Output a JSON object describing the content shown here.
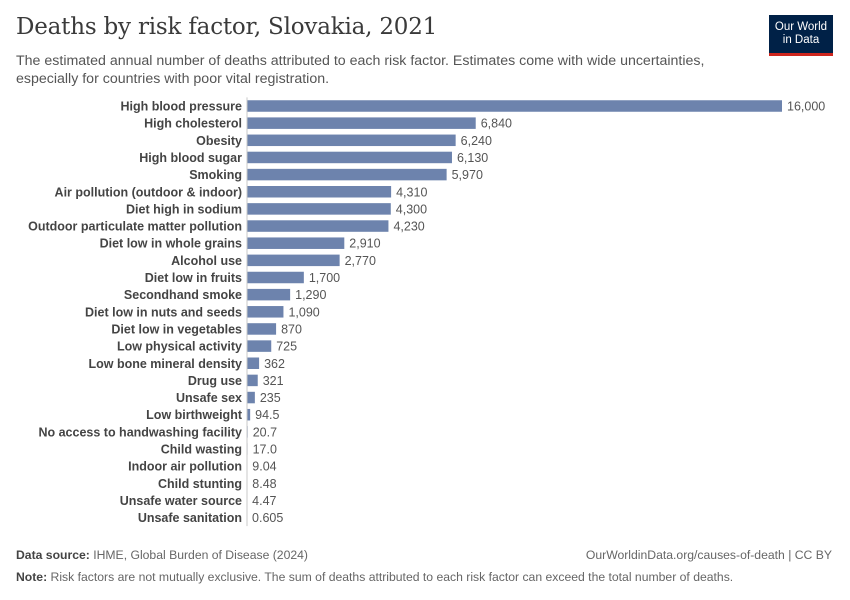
{
  "header": {
    "title": "Deaths by risk factor, Slovakia, 2021",
    "subtitle": "The estimated annual number of deaths attributed to each risk factor. Estimates come with wide uncertainties, especially for countries with poor vital registration.",
    "logo_line1": "Our World",
    "logo_line2": "in Data"
  },
  "footer": {
    "source_label": "Data source:",
    "source_text": "IHME, Global Burden of Disease (2024)",
    "url_text": "OurWorldinData.org/causes-of-death | CC BY",
    "note_label": "Note:",
    "note_text": "Risk factors are not mutually exclusive. The sum of deaths attributed to each risk factor can exceed the total number of deaths."
  },
  "colors": {
    "bar": "#6d83ad",
    "axis": "#c8c8c8",
    "logo_bg": "#002147",
    "logo_accent": "#ce261e"
  },
  "chart_data": {
    "type": "bar",
    "orientation": "horizontal",
    "title": "Deaths by risk factor, Slovakia, 2021",
    "categories": [
      "High blood pressure",
      "High cholesterol",
      "Obesity",
      "High blood sugar",
      "Smoking",
      "Air pollution (outdoor & indoor)",
      "Diet high in sodium",
      "Outdoor particulate matter pollution",
      "Diet low in whole grains",
      "Alcohol use",
      "Diet low in fruits",
      "Secondhand smoke",
      "Diet low in nuts and seeds",
      "Diet low in vegetables",
      "Low physical activity",
      "Low bone mineral density",
      "Drug use",
      "Unsafe sex",
      "Low birthweight",
      "No access to handwashing facility",
      "Child wasting",
      "Indoor air pollution",
      "Child stunting",
      "Unsafe water source",
      "Unsafe sanitation"
    ],
    "values": [
      16000,
      6840,
      6240,
      6130,
      5970,
      4310,
      4300,
      4230,
      2910,
      2770,
      1700,
      1290,
      1090,
      870,
      725,
      362,
      321,
      235,
      94.5,
      20.7,
      17.0,
      9.04,
      8.48,
      4.47,
      0.605
    ],
    "value_labels": [
      "16,000",
      "6,840",
      "6,240",
      "6,130",
      "5,970",
      "4,310",
      "4,300",
      "4,230",
      "2,910",
      "2,770",
      "1,700",
      "1,290",
      "1,090",
      "870",
      "725",
      "362",
      "321",
      "235",
      "94.5",
      "20.7",
      "17.0",
      "9.04",
      "8.48",
      "4.47",
      "0.605"
    ],
    "xlim": [
      0,
      16000
    ],
    "grid": false,
    "legend": "none"
  }
}
